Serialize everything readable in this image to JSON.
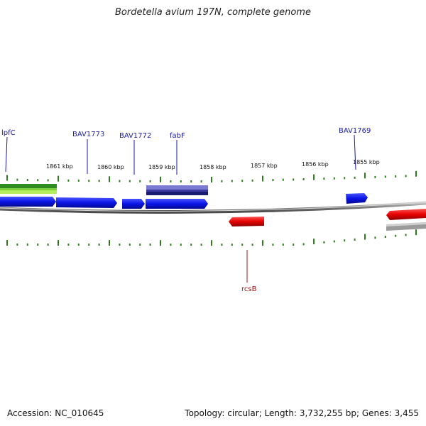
{
  "title": "Bordetella avium 197N, complete genome",
  "footer": {
    "accession_label": "Accession:",
    "accession": "NC_010645",
    "topology_label": "Topology:",
    "topology": "circular",
    "length_label": "Length:",
    "length": "3,732,255 bp",
    "genes_label": "Genes:",
    "genes": "3,455"
  },
  "colors": {
    "forward_gene": "#0a14e6",
    "reverse_gene": "#e60000",
    "label_forward": "#1a1aa8",
    "label_reverse": "#a31515",
    "tick": "#2e7d1f",
    "backbone": "#8a8a8a",
    "green_dark": "#2e8b22",
    "green_light": "#b4ee5a",
    "navy": "#1a1a6e",
    "navy_light": "#7a7ad0",
    "grey_feature": "#b8b8b8"
  },
  "scale_labels": [
    "1861 kbp",
    "1860 kbp",
    "1859 kbp",
    "1858 kbp",
    "1857 kbp",
    "1856 kbp",
    "1855 kbp"
  ],
  "gene_labels": {
    "lpfC": "lpfC",
    "bav1773": "BAV1773",
    "bav1772": "BAV1772",
    "fabF": "fabF",
    "bav1769": "BAV1769",
    "rcsB": "rcsB"
  }
}
